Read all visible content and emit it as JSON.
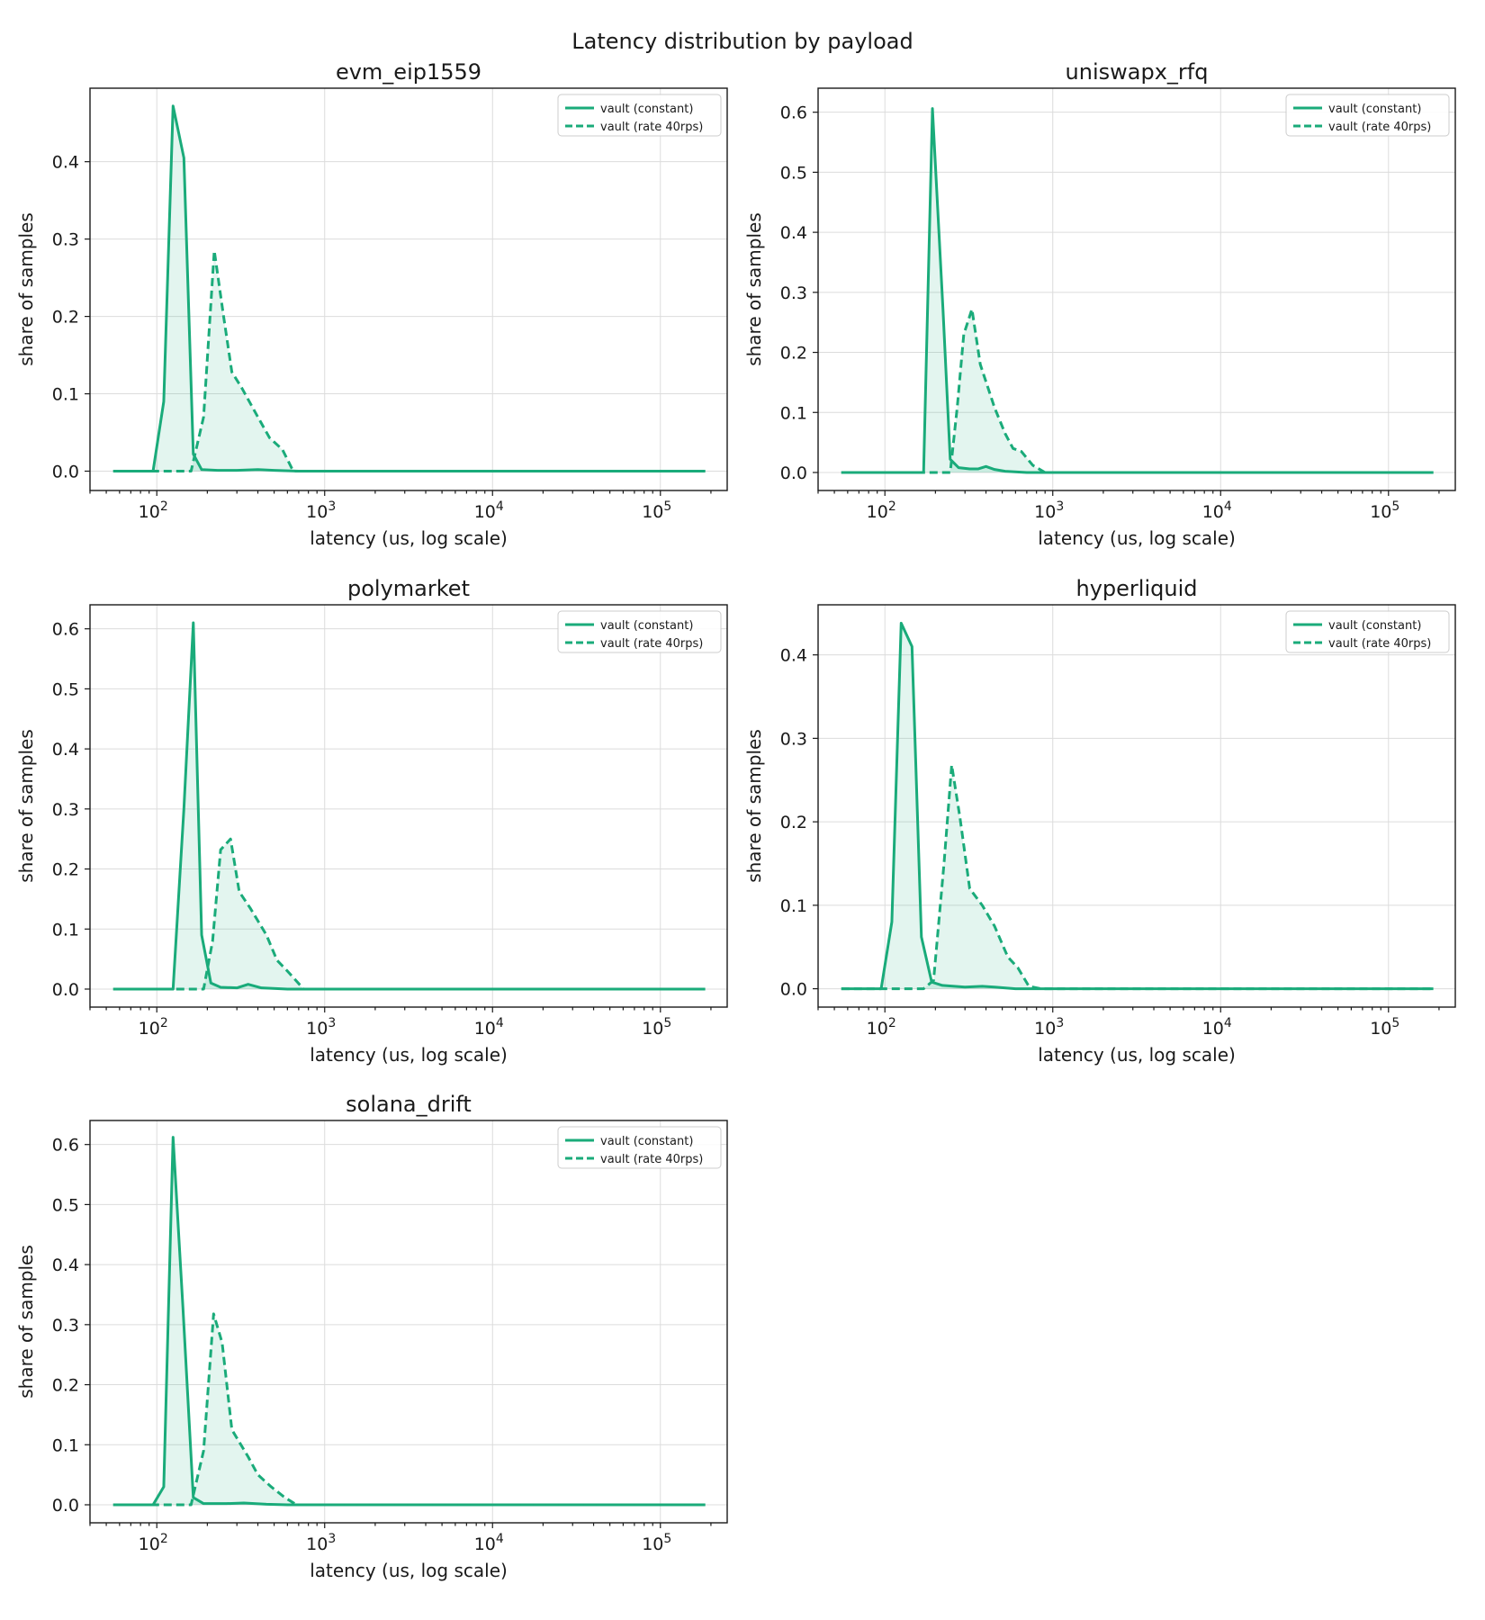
{
  "colors": {
    "series": "#1aab7a",
    "fill": "#1aab7a",
    "grid": "#dcdcdc"
  },
  "chart_data": {
    "type": "line",
    "title": "Latency distribution by payload",
    "xlabel": "latency (us, log scale)",
    "ylabel": "share of samples",
    "x_scale": "log",
    "xlim": [
      40,
      250000
    ],
    "x_ticks": [
      100,
      1000,
      10000,
      100000
    ],
    "x_tick_labels": [
      [
        "10",
        "2"
      ],
      [
        "10",
        "3"
      ],
      [
        "10",
        "4"
      ],
      [
        "10",
        "5"
      ]
    ],
    "x_domain": [
      55,
      185000
    ],
    "grid": true,
    "legend_placement": "upper right",
    "legend": [
      {
        "label": "vault (constant)",
        "style": "solid"
      },
      {
        "label": "vault (rate 40rps)",
        "style": "dashed"
      }
    ],
    "panels": [
      {
        "title": "evm_eip1559",
        "ylim": [
          -0.025,
          0.495
        ],
        "y_ticks": [
          0,
          0.1,
          0.2,
          0.3,
          0.4
        ],
        "y_tick_labels": [
          "0.0",
          "0.1",
          "0.2",
          "0.3",
          "0.4"
        ],
        "series": [
          {
            "name": "vault (constant)",
            "style": "solid",
            "points": [
              [
                95,
                0.0
              ],
              [
                110,
                0.09
              ],
              [
                125,
                0.472
              ],
              [
                145,
                0.405
              ],
              [
                165,
                0.022
              ],
              [
                185,
                0.002
              ],
              [
                230,
                0.001
              ],
              [
                300,
                0.001
              ],
              [
                400,
                0.002
              ],
              [
                500,
                0.001
              ],
              [
                700,
                0.0
              ]
            ]
          },
          {
            "name": "vault (rate 40rps)",
            "style": "dashed",
            "points": [
              [
                130,
                0.0
              ],
              [
                160,
                0.0
              ],
              [
                190,
                0.07
              ],
              [
                220,
                0.285
              ],
              [
                250,
                0.2
              ],
              [
                280,
                0.128
              ],
              [
                320,
                0.108
              ],
              [
                400,
                0.07
              ],
              [
                470,
                0.043
              ],
              [
                560,
                0.028
              ],
              [
                650,
                0.0
              ]
            ]
          }
        ]
      },
      {
        "title": "uniswapx_rfq",
        "ylim": [
          -0.03,
          0.64
        ],
        "y_ticks": [
          0,
          0.1,
          0.2,
          0.3,
          0.4,
          0.5,
          0.6
        ],
        "y_tick_labels": [
          "0.0",
          "0.1",
          "0.2",
          "0.3",
          "0.4",
          "0.5",
          "0.6"
        ],
        "series": [
          {
            "name": "vault (constant)",
            "style": "solid",
            "points": [
              [
                160,
                0.0
              ],
              [
                170,
                0.0
              ],
              [
                192,
                0.606
              ],
              [
                222,
                0.27
              ],
              [
                245,
                0.022
              ],
              [
                275,
                0.008
              ],
              [
                320,
                0.006
              ],
              [
                360,
                0.006
              ],
              [
                400,
                0.01
              ],
              [
                450,
                0.005
              ],
              [
                520,
                0.002
              ],
              [
                700,
                0.0
              ]
            ]
          },
          {
            "name": "vault (rate 40rps)",
            "style": "dashed",
            "points": [
              [
                200,
                0.0
              ],
              [
                245,
                0.0
              ],
              [
                270,
                0.11
              ],
              [
                295,
                0.23
              ],
              [
                330,
                0.272
              ],
              [
                370,
                0.18
              ],
              [
                450,
                0.108
              ],
              [
                520,
                0.065
              ],
              [
                580,
                0.04
              ],
              [
                650,
                0.035
              ],
              [
                760,
                0.012
              ],
              [
                900,
                0.0
              ]
            ]
          }
        ]
      },
      {
        "title": "polymarket",
        "ylim": [
          -0.03,
          0.64
        ],
        "y_ticks": [
          0,
          0.1,
          0.2,
          0.3,
          0.4,
          0.5,
          0.6
        ],
        "y_tick_labels": [
          "0.0",
          "0.1",
          "0.2",
          "0.3",
          "0.4",
          "0.5",
          "0.6"
        ],
        "series": [
          {
            "name": "vault (constant)",
            "style": "solid",
            "points": [
              [
                55,
                0.0
              ],
              [
                125,
                0.0
              ],
              [
                145,
                0.3
              ],
              [
                165,
                0.61
              ],
              [
                185,
                0.09
              ],
              [
                210,
                0.01
              ],
              [
                240,
                0.003
              ],
              [
                300,
                0.002
              ],
              [
                350,
                0.008
              ],
              [
                420,
                0.002
              ],
              [
                600,
                0.0
              ]
            ]
          },
          {
            "name": "vault (rate 40rps)",
            "style": "dashed",
            "points": [
              [
                150,
                0.0
              ],
              [
                190,
                0.0
              ],
              [
                215,
                0.08
              ],
              [
                240,
                0.232
              ],
              [
                275,
                0.25
              ],
              [
                310,
                0.162
              ],
              [
                360,
                0.135
              ],
              [
                450,
                0.09
              ],
              [
                520,
                0.048
              ],
              [
                600,
                0.03
              ],
              [
                750,
                0.0
              ]
            ]
          }
        ]
      },
      {
        "title": "hyperliquid",
        "ylim": [
          -0.022,
          0.46
        ],
        "y_ticks": [
          0,
          0.1,
          0.2,
          0.3,
          0.4
        ],
        "y_tick_labels": [
          "0.0",
          "0.1",
          "0.2",
          "0.3",
          "0.4"
        ],
        "series": [
          {
            "name": "vault (constant)",
            "style": "solid",
            "points": [
              [
                95,
                0.0
              ],
              [
                110,
                0.08
              ],
              [
                125,
                0.438
              ],
              [
                145,
                0.41
              ],
              [
                165,
                0.062
              ],
              [
                190,
                0.008
              ],
              [
                220,
                0.004
              ],
              [
                300,
                0.002
              ],
              [
                380,
                0.003
              ],
              [
                450,
                0.002
              ],
              [
                600,
                0.0
              ]
            ]
          },
          {
            "name": "vault (rate 40rps)",
            "style": "dashed",
            "points": [
              [
                140,
                0.0
              ],
              [
                170,
                0.0
              ],
              [
                195,
                0.01
              ],
              [
                225,
                0.15
              ],
              [
                250,
                0.268
              ],
              [
                280,
                0.205
              ],
              [
                320,
                0.12
              ],
              [
                380,
                0.1
              ],
              [
                450,
                0.075
              ],
              [
                540,
                0.038
              ],
              [
                620,
                0.025
              ],
              [
                720,
                0.003
              ],
              [
                850,
                0.0
              ]
            ]
          }
        ]
      },
      {
        "title": "solana_drift",
        "ylim": [
          -0.03,
          0.64
        ],
        "y_ticks": [
          0,
          0.1,
          0.2,
          0.3,
          0.4,
          0.5,
          0.6
        ],
        "y_tick_labels": [
          "0.0",
          "0.1",
          "0.2",
          "0.3",
          "0.4",
          "0.5",
          "0.6"
        ],
        "series": [
          {
            "name": "vault (constant)",
            "style": "solid",
            "points": [
              [
                95,
                0.0
              ],
              [
                110,
                0.03
              ],
              [
                125,
                0.612
              ],
              [
                143,
                0.33
              ],
              [
                165,
                0.012
              ],
              [
                190,
                0.002
              ],
              [
                260,
                0.002
              ],
              [
                330,
                0.003
              ],
              [
                450,
                0.001
              ],
              [
                600,
                0.0
              ]
            ]
          },
          {
            "name": "vault (rate 40rps)",
            "style": "dashed",
            "points": [
              [
                130,
                0.0
              ],
              [
                160,
                0.0
              ],
              [
                190,
                0.09
              ],
              [
                218,
                0.318
              ],
              [
                245,
                0.27
              ],
              [
                280,
                0.125
              ],
              [
                350,
                0.08
              ],
              [
                400,
                0.05
              ],
              [
                480,
                0.03
              ],
              [
                580,
                0.012
              ],
              [
                680,
                0.0
              ]
            ]
          }
        ]
      }
    ]
  }
}
